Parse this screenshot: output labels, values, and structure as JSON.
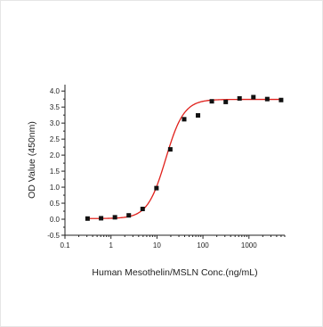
{
  "chart_data": {
    "type": "scatter",
    "xlabel": "Human Mesothelin/MSLN Conc.(ng/mL)",
    "ylabel": "OD Value (450nm)",
    "xscale": "log",
    "xlim": [
      0.1,
      6000
    ],
    "ylim": [
      -0.5,
      4.2
    ],
    "xticks": [
      0.1,
      1,
      10,
      100,
      1000
    ],
    "xtick_labels": [
      "0.1",
      "1",
      "10",
      "100",
      "1000"
    ],
    "yticks": [
      -0.5,
      0.0,
      0.5,
      1.0,
      1.5,
      2.0,
      2.5,
      3.0,
      3.5,
      4.0
    ],
    "ytick_labels": [
      "-0.5",
      "0.0",
      "0.5",
      "1.0",
      "1.5",
      "2.0",
      "2.5",
      "3.0",
      "3.5",
      "4.0"
    ],
    "grid": false,
    "series": [
      {
        "kind": "points",
        "color": "#111111",
        "x": [
          0.31,
          0.61,
          1.22,
          2.44,
          4.88,
          9.77,
          19.5,
          39.1,
          78.1,
          156,
          313,
          625,
          1250,
          2500,
          5000
        ],
        "y": [
          0.02,
          0.03,
          0.06,
          0.12,
          0.32,
          0.97,
          2.18,
          3.12,
          3.24,
          3.68,
          3.66,
          3.77,
          3.81,
          3.75,
          3.72
        ]
      },
      {
        "kind": "fit",
        "color": "#e0201b",
        "model": "4PL",
        "bottom": 0.02,
        "top": 3.74,
        "ec50": 15.5,
        "hill": 2.2
      }
    ]
  }
}
